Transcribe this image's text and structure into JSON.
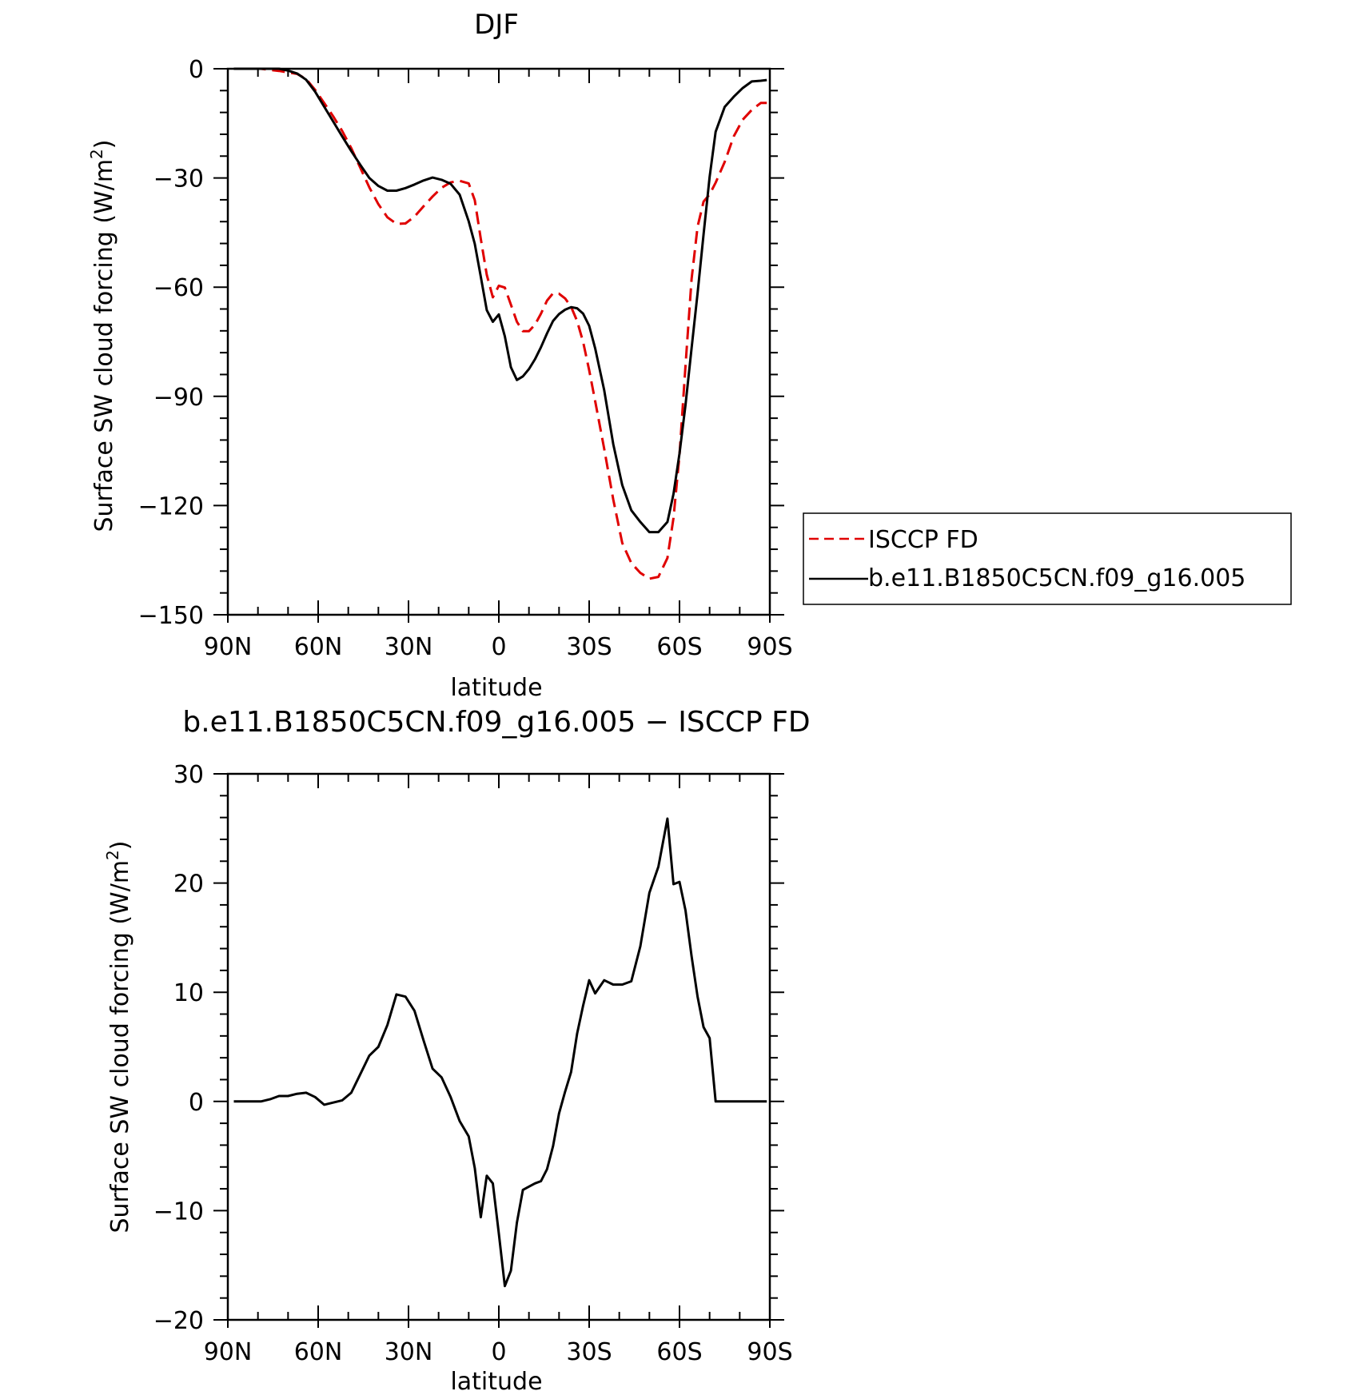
{
  "chart_data": [
    {
      "type": "line",
      "title": "DJF",
      "xlabel": "latitude",
      "ylabel": "Surface SW cloud forcing (W/m²)",
      "xlim": [
        90,
        -90
      ],
      "ylim": [
        -150,
        0
      ],
      "x_ticks": [
        {
          "value": 90,
          "label": "90N"
        },
        {
          "value": 60,
          "label": "60N"
        },
        {
          "value": 30,
          "label": "30N"
        },
        {
          "value": 0,
          "label": "0"
        },
        {
          "value": -30,
          "label": "30S"
        },
        {
          "value": -60,
          "label": "60S"
        },
        {
          "value": -90,
          "label": "90S"
        }
      ],
      "y_ticks": [
        {
          "value": 0,
          "label": "0"
        },
        {
          "value": -30,
          "label": "−30"
        },
        {
          "value": -60,
          "label": "−60"
        },
        {
          "value": -90,
          "label": "−90"
        },
        {
          "value": -120,
          "label": "−120"
        },
        {
          "value": -150,
          "label": "−150"
        }
      ],
      "legend_position": "right",
      "series": [
        {
          "name": "ISCCP FD",
          "color": "#e00000",
          "dash": "dashed",
          "x": [
            88,
            85,
            82,
            79,
            76,
            73,
            70,
            67,
            64,
            61,
            58,
            55,
            52,
            49,
            46,
            43,
            40,
            37,
            34,
            31,
            28,
            25,
            22,
            19,
            16,
            13,
            10,
            8,
            6,
            4,
            2,
            0,
            -2,
            -4,
            -6,
            -8,
            -10,
            -12,
            -14,
            -16,
            -18,
            -20,
            -22,
            -24,
            -26,
            -28,
            -30,
            -32,
            -35,
            -38,
            -41,
            -44,
            -47,
            -50,
            -53,
            -56,
            -58,
            -60,
            -62,
            -64,
            -66,
            -68,
            -70,
            -72,
            -75,
            -78,
            -81,
            -84,
            -87,
            -89
          ],
          "y": [
            0,
            0,
            0,
            0,
            -0.3,
            -0.6,
            -1,
            -1.4,
            -2.8,
            -5.8,
            -9.4,
            -13.1,
            -17.1,
            -21.8,
            -27.2,
            -32.6,
            -37.2,
            -40.8,
            -42.6,
            -42.5,
            -40.6,
            -37.8,
            -35.1,
            -32.7,
            -31.2,
            -30.8,
            -31.5,
            -36.1,
            -46.7,
            -56.6,
            -62.8,
            -59.6,
            -60.1,
            -64.8,
            -69.5,
            -72.1,
            -72.1,
            -70.3,
            -67.3,
            -63.7,
            -61.7,
            -61.8,
            -63.1,
            -65.4,
            -69.3,
            -75.1,
            -82.8,
            -91.3,
            -104.4,
            -118.3,
            -130.3,
            -135.8,
            -138.5,
            -140.1,
            -139.6,
            -134.4,
            -123.4,
            -106.1,
            -81.6,
            -57.8,
            -43.4,
            -36.5,
            -34.5,
            -31.3,
            -25.6,
            -18.6,
            -14,
            -11.3,
            -9.4,
            -9.4
          ]
        },
        {
          "name": "b.e11.B1850C5CN.f09_g16.005",
          "color": "#000000",
          "dash": "solid",
          "x": [
            88,
            85,
            82,
            79,
            76,
            73,
            70,
            67,
            64,
            61,
            58,
            55,
            52,
            49,
            46,
            43,
            40,
            37,
            34,
            31,
            28,
            25,
            22,
            19,
            16,
            13,
            10,
            8,
            6,
            4,
            2,
            0,
            -2,
            -4,
            -6,
            -8,
            -10,
            -12,
            -14,
            -16,
            -18,
            -20,
            -22,
            -24,
            -26,
            -28,
            -30,
            -32,
            -35,
            -38,
            -41,
            -44,
            -47,
            -50,
            -53,
            -56,
            -58,
            -60,
            -62,
            -64,
            -66,
            -68,
            -70,
            -72,
            -75,
            -78,
            -81,
            -84,
            -87,
            -89
          ],
          "y": [
            0,
            0,
            0,
            0,
            0,
            0,
            -0.5,
            -1.3,
            -3,
            -6.3,
            -10.4,
            -14.5,
            -18.6,
            -22.6,
            -26.4,
            -30,
            -32.2,
            -33.5,
            -33.5,
            -32.8,
            -31.8,
            -30.7,
            -29.9,
            -30.5,
            -31.6,
            -34.6,
            -41.9,
            -48.1,
            -57.1,
            -66.3,
            -69.5,
            -67.5,
            -73.5,
            -82,
            -85.5,
            -84.5,
            -82.5,
            -79.8,
            -76.5,
            -72.7,
            -69.3,
            -67.4,
            -66.2,
            -65.5,
            -65.8,
            -67.3,
            -70.6,
            -76.8,
            -88.3,
            -103.1,
            -114.4,
            -121.3,
            -124.5,
            -127.3,
            -127.3,
            -124.5,
            -116.8,
            -105.7,
            -92.4,
            -76.8,
            -61.7,
            -45.5,
            -29.7,
            -17.3,
            -10.5,
            -7.7,
            -5.3,
            -3.5,
            -3.3,
            -3.1
          ]
        }
      ]
    },
    {
      "type": "line",
      "title": "b.e11.B1850C5CN.f09_g16.005 − ISCCP FD",
      "xlabel": "latitude",
      "ylabel": "Surface SW cloud forcing (W/m²)",
      "xlim": [
        90,
        -90
      ],
      "ylim": [
        -20,
        30
      ],
      "x_ticks": [
        {
          "value": 90,
          "label": "90N"
        },
        {
          "value": 60,
          "label": "60N"
        },
        {
          "value": 30,
          "label": "30N"
        },
        {
          "value": 0,
          "label": "0"
        },
        {
          "value": -30,
          "label": "30S"
        },
        {
          "value": -60,
          "label": "60S"
        },
        {
          "value": -90,
          "label": "90S"
        }
      ],
      "y_ticks": [
        {
          "value": 30,
          "label": "30"
        },
        {
          "value": 20,
          "label": "20"
        },
        {
          "value": 10,
          "label": "10"
        },
        {
          "value": 0,
          "label": "0"
        },
        {
          "value": -10,
          "label": "−10"
        },
        {
          "value": -20,
          "label": "−20"
        }
      ],
      "series": [
        {
          "color": "#000000",
          "dash": "solid",
          "x": [
            88,
            85,
            82,
            79,
            76,
            73,
            70,
            67,
            64,
            61,
            58,
            55,
            52,
            49,
            46,
            43,
            40,
            37,
            34,
            31,
            28,
            25,
            22,
            19,
            16,
            13,
            10,
            8,
            6,
            4,
            2,
            0,
            -2,
            -4,
            -6,
            -8,
            -10,
            -12,
            -14,
            -16,
            -18,
            -20,
            -22,
            -24,
            -26,
            -28,
            -30,
            -32,
            -35,
            -38,
            -41,
            -44,
            -47,
            -50,
            -53,
            -56,
            -58,
            -60,
            -62,
            -64,
            -66,
            -68,
            -70,
            -72,
            -75,
            -78,
            -81,
            -84,
            -87,
            -89
          ],
          "y": [
            0,
            0,
            0,
            0,
            0.2,
            0.5,
            0.5,
            0.7,
            0.8,
            0.4,
            -0.3,
            -0.1,
            0.1,
            0.8,
            2.5,
            4.2,
            5,
            7,
            9.8,
            9.6,
            8.3,
            5.6,
            3,
            2.2,
            0.4,
            -1.8,
            -3.2,
            -6.1,
            -10.6,
            -6.8,
            -7.5,
            -12.1,
            -16.9,
            -15.5,
            -11.1,
            -8.1,
            -7.8,
            -7.5,
            -7.3,
            -6.2,
            -4.1,
            -1.1,
            0.9,
            2.7,
            6.2,
            8.8,
            11.1,
            9.9,
            11.1,
            10.7,
            10.7,
            11,
            14.2,
            19.1,
            21.5,
            25.9,
            19.9,
            20.1,
            17.5,
            13.3,
            9.6,
            6.8,
            5.8,
            0,
            0,
            0,
            0,
            0,
            0,
            0
          ]
        }
      ]
    }
  ]
}
